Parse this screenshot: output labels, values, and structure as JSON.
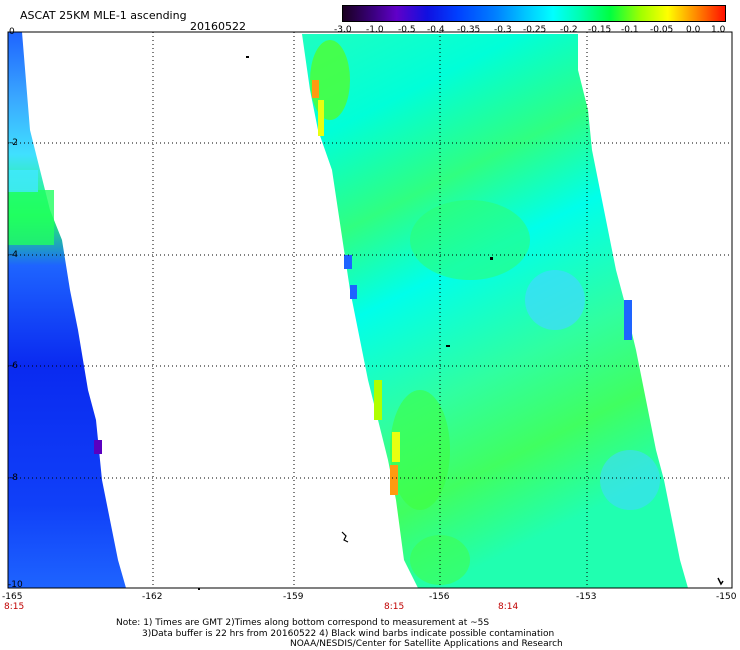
{
  "header": {
    "title": "ASCAT 25KM MLE-1 ascending",
    "date": "20160522"
  },
  "colorbar": {
    "labels": [
      "-3.0",
      "-1.0",
      "-0.5",
      "-0.4",
      "-0.35",
      "-0.3",
      "-0.25",
      "-0.2",
      "-0.15",
      "-0.1",
      "-0.05",
      "0.0",
      "1.0"
    ],
    "colors": [
      "#2a0030",
      "#3b0080",
      "#5a00c0",
      "#1020e0",
      "#0040ff",
      "#0078ff",
      "#00b8ff",
      "#00ffff",
      "#00ffb0",
      "#00ff40",
      "#b0ff00",
      "#ffff00",
      "#ff9000",
      "#ff2000"
    ]
  },
  "map": {
    "y_axis_labels": [
      "0",
      "-2",
      "-4",
      "-6",
      "-8",
      "-10"
    ],
    "x_axis_labels": [
      "-165",
      "-162",
      "-159",
      "-156",
      "-153",
      "-150"
    ],
    "time_labels": [
      "8:15",
      "8:15",
      "8:14"
    ],
    "swath_colors": {
      "deep_blue": "#0a2af0",
      "blue": "#1e64ff",
      "light_blue": "#3aa8ff",
      "sky": "#40d8ff",
      "cyan": "#00ffea",
      "aqua": "#1effc0",
      "green": "#20ff60",
      "lime": "#50ff20",
      "yellow": "#e8ff10",
      "orange": "#ff9a10"
    }
  },
  "notes": {
    "line1": "Note: 1) Times are GMT 2)Times along bottom correspond to measurement at ~5S",
    "line2": "3)Data buffer is 22 hrs from 20160522 4) Black wind barbs indicate possible contamination",
    "line3": "NOAA/NESDIS/Center for Satellite Applications and Research"
  }
}
